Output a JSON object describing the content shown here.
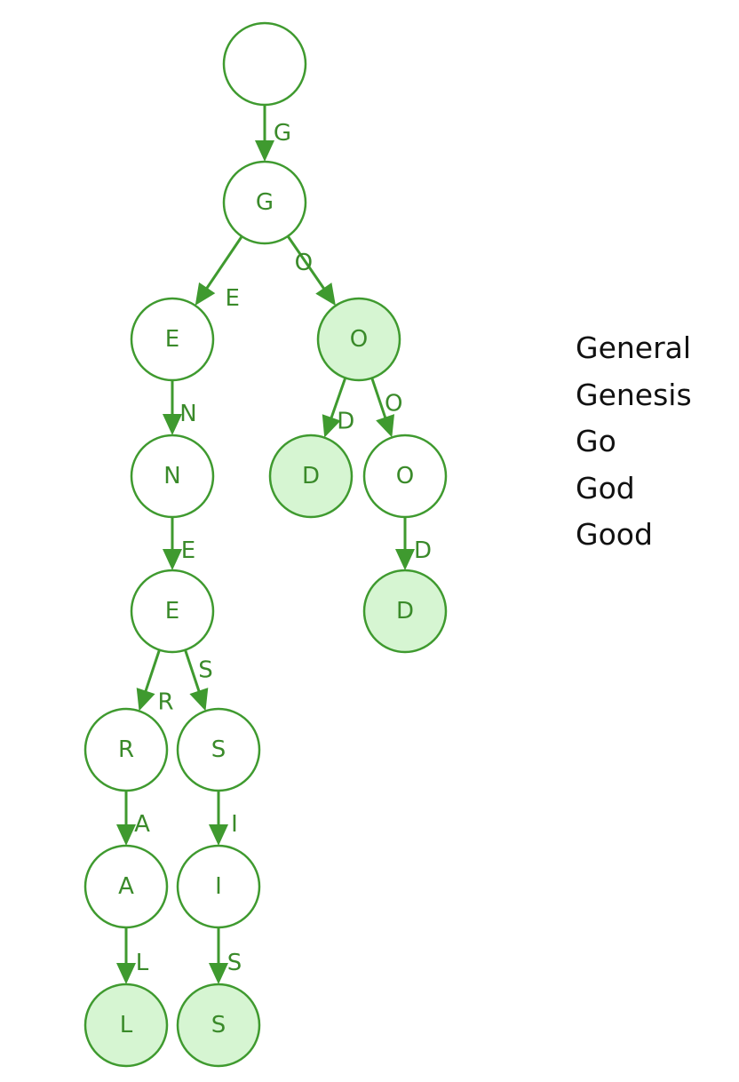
{
  "colors": {
    "stroke": "#3f9a2f",
    "terminal_fill": "#d6f5d2",
    "node_fill": "#ffffff",
    "label": "#3a8a2a",
    "word_text": "#111111"
  },
  "trie": {
    "nodes": [
      {
        "id": "root",
        "label": "",
        "terminal": false
      },
      {
        "id": "g",
        "label": "G",
        "terminal": false
      },
      {
        "id": "ge",
        "label": "E",
        "terminal": false
      },
      {
        "id": "go",
        "label": "O",
        "terminal": true
      },
      {
        "id": "gen",
        "label": "N",
        "terminal": false
      },
      {
        "id": "god",
        "label": "D",
        "terminal": true
      },
      {
        "id": "goo",
        "label": "O",
        "terminal": false
      },
      {
        "id": "gene",
        "label": "E",
        "terminal": false
      },
      {
        "id": "good",
        "label": "D",
        "terminal": true
      },
      {
        "id": "gener",
        "label": "R",
        "terminal": false
      },
      {
        "id": "genes",
        "label": "S",
        "terminal": false
      },
      {
        "id": "genera",
        "label": "A",
        "terminal": false
      },
      {
        "id": "genesi",
        "label": "I",
        "terminal": false
      },
      {
        "id": "general",
        "label": "L",
        "terminal": true
      },
      {
        "id": "genesis",
        "label": "S",
        "terminal": true
      }
    ],
    "edges": [
      {
        "from": "root",
        "to": "g",
        "label": "G"
      },
      {
        "from": "g",
        "to": "ge",
        "label": "E"
      },
      {
        "from": "g",
        "to": "go",
        "label": "O"
      },
      {
        "from": "ge",
        "to": "gen",
        "label": "N"
      },
      {
        "from": "go",
        "to": "god",
        "label": "D"
      },
      {
        "from": "go",
        "to": "goo",
        "label": "O"
      },
      {
        "from": "gen",
        "to": "gene",
        "label": "E"
      },
      {
        "from": "goo",
        "to": "good",
        "label": "D"
      },
      {
        "from": "gene",
        "to": "gener",
        "label": "R"
      },
      {
        "from": "gene",
        "to": "genes",
        "label": "S"
      },
      {
        "from": "gener",
        "to": "genera",
        "label": "A"
      },
      {
        "from": "genes",
        "to": "genesi",
        "label": "I"
      },
      {
        "from": "genera",
        "to": "general",
        "label": "L"
      },
      {
        "from": "genesi",
        "to": "genesis",
        "label": "S"
      }
    ]
  },
  "words": [
    "General",
    "Genesis",
    "Go",
    "God",
    "Good"
  ]
}
